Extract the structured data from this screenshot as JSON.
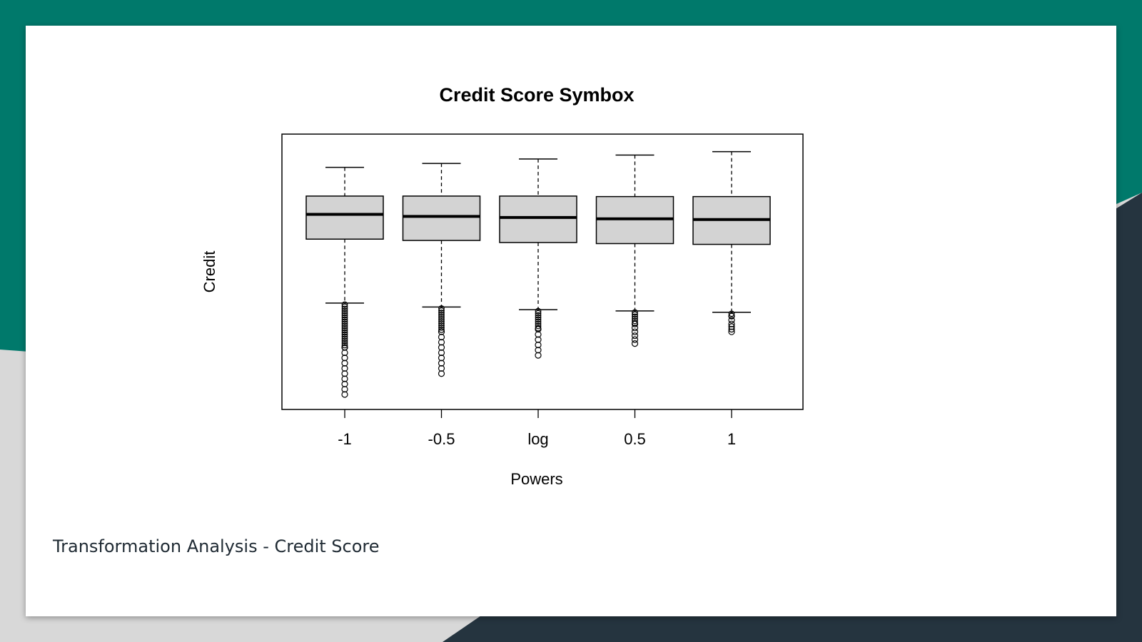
{
  "colors": {
    "teal": "#00796b",
    "dark": "#25343f",
    "gray": "#d8d8d8",
    "box_fill": "#d3d3d3"
  },
  "caption": "Transformation Analysis - Credit Score",
  "chart_data": {
    "type": "boxplot",
    "title": "Credit Score Symbox",
    "xlabel": "Powers",
    "ylabel": "Credit",
    "categories": [
      "-1",
      "-0.5",
      "log",
      "0.5",
      "1"
    ],
    "y_axis_shown": false,
    "ylim": [
      0,
      1
    ],
    "series": [
      {
        "category": "-1",
        "whisker_high": 0.9,
        "q3": 0.79,
        "median": 0.72,
        "q1": 0.625,
        "whisker_low": 0.38,
        "outliers_top": 0.38,
        "outliers": [
          0.21,
          0.19,
          0.17,
          0.15,
          0.13,
          0.11,
          0.09,
          0.07,
          0.05,
          0.03
        ]
      },
      {
        "category": "-0.5",
        "whisker_high": 0.915,
        "q3": 0.79,
        "median": 0.712,
        "q1": 0.62,
        "whisker_low": 0.365,
        "outliers_top": 0.365,
        "outliers": [
          0.27,
          0.25,
          0.23,
          0.21,
          0.19,
          0.17,
          0.15,
          0.13,
          0.11
        ]
      },
      {
        "category": "log",
        "whisker_high": 0.932,
        "q3": 0.79,
        "median": 0.708,
        "q1": 0.612,
        "whisker_low": 0.355,
        "outliers_top": 0.355,
        "outliers": [
          0.28,
          0.26,
          0.24,
          0.22,
          0.2,
          0.18
        ]
      },
      {
        "category": "0.5",
        "whisker_high": 0.947,
        "q3": 0.788,
        "median": 0.703,
        "q1": 0.608,
        "whisker_low": 0.35,
        "outliers_top": 0.35,
        "outliers": [
          0.3,
          0.285,
          0.27,
          0.255,
          0.24,
          0.225
        ]
      },
      {
        "category": "1",
        "whisker_high": 0.96,
        "q3": 0.788,
        "median": 0.7,
        "q1": 0.605,
        "whisker_low": 0.345,
        "outliers_top": 0.345,
        "outliers": [
          0.33,
          0.315,
          0.3,
          0.29,
          0.28,
          0.27
        ]
      }
    ]
  }
}
